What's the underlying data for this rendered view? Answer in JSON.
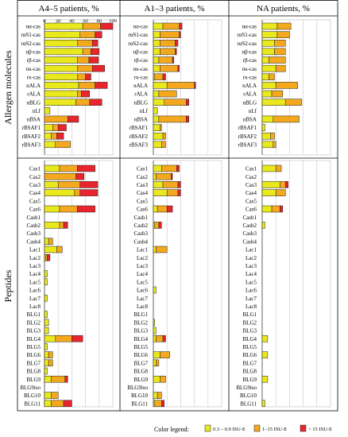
{
  "chart_data": {
    "type": "bar",
    "stacked": true,
    "xlim": [
      0,
      100
    ],
    "xticks": [
      0,
      20,
      40,
      60,
      80,
      100
    ],
    "grid": true,
    "legend_position": "bottom",
    "legend": {
      "title": "Color legend:",
      "entries": [
        {
          "label": "0.3 – 0.9 ISU-E",
          "color": "#e8e81c"
        },
        {
          "label": "1–15 ISU-E",
          "color": "#f3a81e"
        },
        {
          "label": "> 15 ISU-E",
          "color": "#e8242c"
        }
      ]
    },
    "colors": [
      "#e8e81c",
      "#f3a81e",
      "#e8242c"
    ],
    "row_groups": [
      {
        "label": "Allergen molecules",
        "categories": [
          "nα-cas",
          "rαS1-cas",
          "rαS2-cas",
          "nβ-cas",
          "rβ-cas",
          "nκ-cas",
          "rκ-cas",
          "nALA",
          "rALA",
          "nBLG",
          "nLf",
          "nBSA",
          "rBSAF1",
          "rBSAF2",
          "rBSAF3"
        ]
      },
      {
        "label": "Peptides",
        "categories": [
          "Cas1",
          "Cas2",
          "Cas3",
          "Cas4",
          "Cas5",
          "Cas6",
          "Casb1",
          "Casb2",
          "Casb3",
          "Casb4",
          "Lac1",
          "Lac2",
          "Lac3",
          "Lac4",
          "Lac5",
          "Lac6",
          "Lac7",
          "Lac8",
          "BLG1",
          "BLG2",
          "BLG3",
          "BLG4",
          "BLG5",
          "BLG6",
          "BLG7",
          "BLG8",
          "BLG9",
          "BLG9iso",
          "BLG10",
          "BLG11"
        ]
      }
    ],
    "panels": [
      {
        "title": "A4–5 patients, %",
        "molecules": [
          [
            56,
            26,
            18
          ],
          [
            52,
            22,
            10
          ],
          [
            48,
            22,
            8
          ],
          [
            56,
            12,
            12
          ],
          [
            48,
            17,
            14
          ],
          [
            48,
            22,
            18
          ],
          [
            48,
            12,
            8
          ],
          [
            50,
            24,
            18
          ],
          [
            48,
            6,
            12
          ],
          [
            46,
            20,
            18
          ],
          [
            8,
            0,
            0
          ],
          [
            0,
            34,
            16
          ],
          [
            12,
            8,
            12
          ],
          [
            10,
            8,
            10
          ],
          [
            16,
            22,
            0
          ]
        ],
        "peptides": [
          [
            22,
            26,
            26
          ],
          [
            0,
            46,
            12
          ],
          [
            20,
            32,
            26
          ],
          [
            44,
            8,
            26
          ],
          [
            0,
            0,
            0
          ],
          [
            22,
            26,
            26
          ],
          [
            0,
            0,
            0
          ],
          [
            22,
            6,
            6
          ],
          [
            0,
            0,
            0
          ],
          [
            6,
            6,
            0
          ],
          [
            18,
            8,
            0
          ],
          [
            2,
            2,
            4
          ],
          [
            0,
            0,
            0
          ],
          [
            4,
            0,
            0
          ],
          [
            4,
            0,
            0
          ],
          [
            0,
            0,
            0
          ],
          [
            4,
            0,
            0
          ],
          [
            0,
            0,
            0
          ],
          [
            4,
            0,
            0
          ],
          [
            6,
            0,
            0
          ],
          [
            6,
            0,
            0
          ],
          [
            16,
            24,
            16
          ],
          [
            4,
            0,
            0
          ],
          [
            6,
            6,
            0
          ],
          [
            6,
            6,
            0
          ],
          [
            4,
            0,
            0
          ],
          [
            10,
            20,
            4
          ],
          [
            0,
            0,
            0
          ],
          [
            10,
            10,
            0
          ],
          [
            10,
            18,
            12
          ]
        ]
      },
      {
        "title": "A1–3 patients, %",
        "molecules": [
          [
            14,
            24,
            4
          ],
          [
            10,
            28,
            2
          ],
          [
            10,
            22,
            4
          ],
          [
            10,
            22,
            2
          ],
          [
            8,
            20,
            2
          ],
          [
            10,
            26,
            2
          ],
          [
            2,
            12,
            4
          ],
          [
            20,
            40,
            2
          ],
          [
            8,
            26,
            0
          ],
          [
            16,
            32,
            4
          ],
          [
            6,
            0,
            0
          ],
          [
            8,
            40,
            4
          ],
          [
            10,
            2,
            0
          ],
          [
            14,
            4,
            0
          ],
          [
            12,
            6,
            0
          ]
        ],
        "peptides": [
          [
            12,
            22,
            4
          ],
          [
            4,
            22,
            2
          ],
          [
            14,
            22,
            4
          ],
          [
            20,
            16,
            4
          ],
          [
            0,
            0,
            0
          ],
          [
            6,
            14,
            8
          ],
          [
            0,
            0,
            0
          ],
          [
            2,
            6,
            4
          ],
          [
            0,
            0,
            0
          ],
          [
            0,
            0,
            0
          ],
          [
            4,
            16,
            0
          ],
          [
            0,
            0,
            0
          ],
          [
            0,
            0,
            0
          ],
          [
            0,
            0,
            0
          ],
          [
            0,
            0,
            0
          ],
          [
            4,
            0,
            0
          ],
          [
            0,
            0,
            0
          ],
          [
            0,
            0,
            0
          ],
          [
            0,
            0,
            0
          ],
          [
            2,
            0,
            0
          ],
          [
            4,
            0,
            0
          ],
          [
            4,
            10,
            4
          ],
          [
            0,
            0,
            0
          ],
          [
            10,
            14,
            0
          ],
          [
            4,
            4,
            0
          ],
          [
            0,
            0,
            0
          ],
          [
            10,
            8,
            0
          ],
          [
            0,
            0,
            0
          ],
          [
            6,
            6,
            0
          ],
          [
            2,
            10,
            4
          ]
        ]
      },
      {
        "title": "NA patients, %",
        "molecules": [
          [
            22,
            20,
            0
          ],
          [
            22,
            18,
            0
          ],
          [
            18,
            16,
            0
          ],
          [
            18,
            16,
            0
          ],
          [
            10,
            24,
            0
          ],
          [
            20,
            14,
            0
          ],
          [
            10,
            8,
            0
          ],
          [
            20,
            32,
            0
          ],
          [
            14,
            16,
            0
          ],
          [
            34,
            24,
            0
          ],
          [
            0,
            0,
            0
          ],
          [
            16,
            38,
            0
          ],
          [
            4,
            0,
            0
          ],
          [
            12,
            6,
            0
          ],
          [
            16,
            4,
            0
          ]
        ],
        "peptides": [
          [
            20,
            8,
            0
          ],
          [
            0,
            0,
            0
          ],
          [
            26,
            8,
            4
          ],
          [
            20,
            14,
            0
          ],
          [
            0,
            0,
            0
          ],
          [
            14,
            12,
            4
          ],
          [
            0,
            0,
            0
          ],
          [
            4,
            0,
            0
          ],
          [
            0,
            0,
            0
          ],
          [
            0,
            0,
            0
          ],
          [
            0,
            0,
            0
          ],
          [
            0,
            0,
            0
          ],
          [
            0,
            0,
            0
          ],
          [
            0,
            0,
            0
          ],
          [
            0,
            0,
            0
          ],
          [
            0,
            0,
            0
          ],
          [
            0,
            0,
            0
          ],
          [
            0,
            0,
            0
          ],
          [
            0,
            0,
            0
          ],
          [
            0,
            0,
            0
          ],
          [
            0,
            0,
            0
          ],
          [
            8,
            0,
            0
          ],
          [
            0,
            0,
            0
          ],
          [
            8,
            0,
            0
          ],
          [
            0,
            0,
            0
          ],
          [
            0,
            0,
            0
          ],
          [
            8,
            0,
            0
          ],
          [
            0,
            0,
            0
          ],
          [
            0,
            0,
            0
          ],
          [
            4,
            0,
            0
          ]
        ]
      }
    ]
  }
}
